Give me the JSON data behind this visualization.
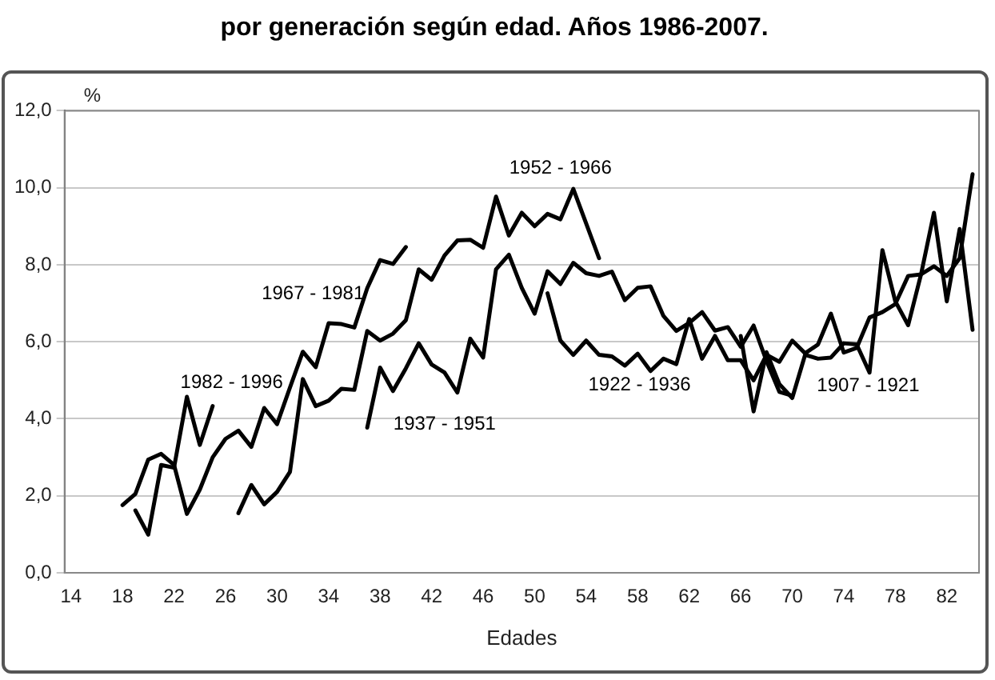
{
  "chart_data": {
    "type": "line",
    "title": "por generación según edad. Años 1986-2007.",
    "xlabel": "Edades",
    "ylabel": "%",
    "categories": [
      "14",
      null,
      null,
      null,
      "18",
      null,
      null,
      null,
      "22",
      null,
      null,
      null,
      "26",
      null,
      null,
      null,
      "30",
      null,
      null,
      null,
      "34",
      null,
      null,
      null,
      "38",
      null,
      null,
      null,
      "42",
      null,
      null,
      null,
      "46",
      null,
      null,
      null,
      "50",
      null,
      null,
      null,
      "54",
      null,
      null,
      null,
      "58",
      null,
      null,
      null,
      "62",
      null,
      null,
      null,
      "66",
      null,
      null,
      null,
      "70",
      null,
      null,
      null,
      "74",
      null,
      null,
      null,
      "78",
      null,
      null,
      null,
      "82",
      null,
      null
    ],
    "ylim": [
      0,
      12
    ],
    "yticks": [
      {
        "value": 0,
        "label": "0,0"
      },
      {
        "value": 2,
        "label": "2,0"
      },
      {
        "value": 4,
        "label": "4,0"
      },
      {
        "value": 6,
        "label": "6,0"
      },
      {
        "value": 8,
        "label": "8,0"
      },
      {
        "value": 10,
        "label": "10,0"
      },
      {
        "value": 12,
        "label": "12,0"
      }
    ],
    "grid": "y",
    "legend": false,
    "marker": "none",
    "line_style": "solid",
    "series": [
      {
        "name": "1982 - 1996",
        "color": "#000000",
        "values": [
          null,
          null,
          null,
          null,
          null,
          1.62,
          0.99,
          2.8,
          2.73,
          4.57,
          3.32,
          4.33,
          null,
          null,
          null,
          null,
          null,
          null,
          null,
          null,
          null,
          null,
          null,
          null,
          null,
          null,
          null,
          null,
          null,
          null,
          null,
          null,
          null,
          null,
          null,
          null,
          null,
          null,
          null,
          null,
          null,
          null,
          null,
          null,
          null,
          null,
          null,
          null,
          null,
          null,
          null,
          null,
          null,
          null,
          null,
          null,
          null,
          null,
          null,
          null,
          null,
          null,
          null,
          null,
          null,
          null,
          null,
          null,
          null,
          null,
          null
        ]
      },
      {
        "name": "1967 - 1981",
        "color": "#000000",
        "values": [
          null,
          null,
          null,
          null,
          1.76,
          2.05,
          2.94,
          3.09,
          2.8,
          1.53,
          2.16,
          3.0,
          3.48,
          3.69,
          3.27,
          4.28,
          3.86,
          4.81,
          5.74,
          5.34,
          6.48,
          6.46,
          6.37,
          7.39,
          8.12,
          8.02,
          8.46,
          null,
          null,
          null,
          null,
          null,
          null,
          null,
          null,
          null,
          null,
          null,
          null,
          null,
          null,
          null,
          null,
          null,
          null,
          null,
          null,
          null,
          null,
          null,
          null,
          null,
          null,
          null,
          null,
          null,
          null,
          null,
          null,
          null,
          null,
          null,
          null,
          null,
          null,
          null,
          null,
          null,
          null,
          null,
          null
        ]
      },
      {
        "name": "1952 - 1966",
        "color": "#000000",
        "values": [
          null,
          null,
          null,
          null,
          null,
          null,
          null,
          null,
          null,
          null,
          null,
          null,
          null,
          1.55,
          2.28,
          1.78,
          2.1,
          2.62,
          5.03,
          4.33,
          4.47,
          4.78,
          4.75,
          6.28,
          6.03,
          6.21,
          6.56,
          7.88,
          7.61,
          8.24,
          8.63,
          8.65,
          8.44,
          9.77,
          8.76,
          9.35,
          9.0,
          9.32,
          9.18,
          9.97,
          9.07,
          8.17,
          null,
          null,
          null,
          null,
          null,
          null,
          null,
          null,
          null,
          null,
          null,
          null,
          null,
          null,
          null,
          null,
          null,
          null,
          null,
          null,
          null,
          null,
          null,
          null,
          null,
          null,
          null,
          null,
          null
        ]
      },
      {
        "name": "1937 - 1951",
        "color": "#000000",
        "values": [
          null,
          null,
          null,
          null,
          null,
          null,
          null,
          null,
          null,
          null,
          null,
          null,
          null,
          null,
          null,
          null,
          null,
          null,
          null,
          null,
          null,
          null,
          null,
          3.77,
          5.33,
          4.72,
          5.31,
          5.96,
          5.41,
          5.2,
          4.68,
          6.08,
          5.59,
          7.88,
          8.26,
          7.4,
          6.73,
          7.83,
          7.5,
          8.05,
          7.78,
          7.71,
          7.82,
          7.08,
          7.4,
          7.44,
          6.67,
          6.28,
          6.49,
          6.77,
          6.29,
          6.38,
          5.87,
          6.42,
          5.5,
          4.7,
          4.6,
          null,
          null,
          null,
          null,
          null,
          null,
          null,
          null,
          null,
          null,
          null,
          null,
          null,
          null
        ]
      },
      {
        "name": "1922 - 1936",
        "color": "#000000",
        "values": [
          null,
          null,
          null,
          null,
          null,
          null,
          null,
          null,
          null,
          null,
          null,
          null,
          null,
          null,
          null,
          null,
          null,
          null,
          null,
          null,
          null,
          null,
          null,
          null,
          null,
          null,
          null,
          null,
          null,
          null,
          null,
          null,
          null,
          null,
          null,
          null,
          null,
          7.26,
          6.03,
          5.66,
          6.03,
          5.66,
          5.62,
          5.38,
          5.69,
          5.24,
          5.56,
          5.42,
          6.59,
          5.56,
          6.15,
          5.52,
          5.52,
          5.0,
          5.66,
          5.48,
          6.03,
          5.7,
          5.93,
          6.73,
          5.72,
          5.84,
          6.63,
          6.77,
          6.98,
          7.71,
          7.75,
          7.96,
          7.71,
          8.17,
          10.35
        ]
      },
      {
        "name": "1907 - 1921",
        "color": "#000000",
        "values": [
          null,
          null,
          null,
          null,
          null,
          null,
          null,
          null,
          null,
          null,
          null,
          null,
          null,
          null,
          null,
          null,
          null,
          null,
          null,
          null,
          null,
          null,
          null,
          null,
          null,
          null,
          null,
          null,
          null,
          null,
          null,
          null,
          null,
          null,
          null,
          null,
          null,
          null,
          null,
          null,
          null,
          null,
          null,
          null,
          null,
          null,
          null,
          null,
          null,
          null,
          null,
          null,
          6.15,
          4.19,
          5.73,
          4.9,
          4.54,
          5.66,
          5.56,
          5.59,
          5.96,
          5.93,
          5.2,
          8.38,
          7.05,
          6.43,
          7.75,
          9.35,
          7.05,
          8.93,
          6.31
        ]
      }
    ]
  }
}
